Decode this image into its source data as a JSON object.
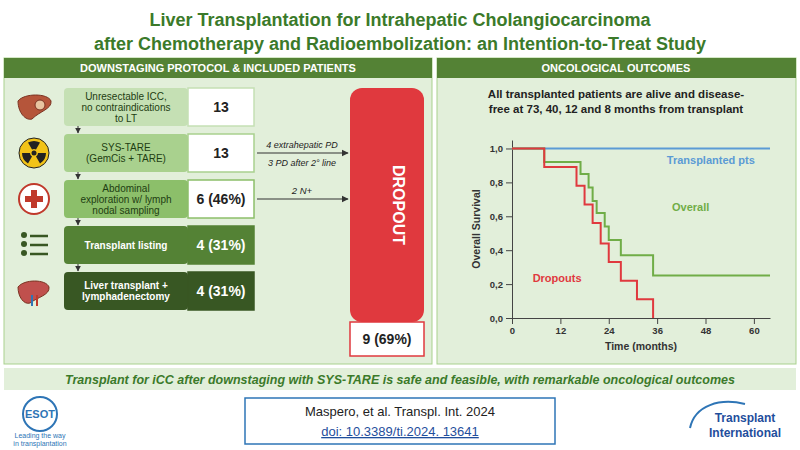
{
  "header": {
    "title": [
      "Liver Transplantation for Intrahepatic Cholangiocarcinoma",
      "after Chemotherapy and Radioembolization: an Intention-to-Treat Study"
    ]
  },
  "left_panel": {
    "heading": "DOWNSTAGING PROTOCOL & INCLUDED PATIENTS",
    "steps": [
      {
        "label": [
          "Unresectable ICC,",
          "no contraindications",
          "to LT"
        ],
        "count": "13"
      },
      {
        "label": [
          "SYS-TARE",
          "(GemCis + TARE)"
        ],
        "count": "13",
        "dropout_note": [
          "4 extrahepatic PD",
          "3 PD after 2° line"
        ]
      },
      {
        "label": [
          "Abdominal",
          "exploration w/ lymph",
          "nodal sampling"
        ],
        "count": "6 (46%)",
        "dropout_note": [
          "2 N+"
        ]
      },
      {
        "label": [
          "Transplant listing"
        ],
        "count": "4 (31%)"
      },
      {
        "label": [
          "Liver transplant +",
          "lymphadenectomy"
        ],
        "count": "4 (31%)"
      }
    ],
    "dropout": {
      "label": "DROPOUT",
      "total": "9 (69%)"
    }
  },
  "right_panel": {
    "heading": "ONCOLOGICAL OUTCOMES",
    "statement": [
      "All transplanted patients are alive and disease-",
      "free at 73, 40, 12 and 8 months from transplant"
    ]
  },
  "chart_data": {
    "type": "line",
    "line_style": "step",
    "x_label": "Time (months)",
    "y_label": "Overall Survival",
    "xlim": [
      0,
      64
    ],
    "xticks": [
      0,
      12,
      24,
      36,
      48,
      60
    ],
    "ylim": [
      0,
      1.05
    ],
    "yticks": [
      {
        "value": 0,
        "label": "0,0"
      },
      {
        "value": 0.2,
        "label": "0,2"
      },
      {
        "value": 0.4,
        "label": "0,4"
      },
      {
        "value": 0.6,
        "label": "0,6"
      },
      {
        "value": 0.8,
        "label": "0,8"
      },
      {
        "value": 1,
        "label": "1,0"
      }
    ],
    "series": [
      {
        "name": "Transplanted pts",
        "color": "#5b9bd5",
        "x": [
          0,
          64
        ],
        "values": [
          1,
          1
        ]
      },
      {
        "name": "Overall",
        "color": "#70ad47",
        "x": [
          0,
          8,
          17,
          19,
          20,
          21,
          23,
          24,
          27,
          35,
          64
        ],
        "values": [
          1,
          0.92,
          0.85,
          0.77,
          0.69,
          0.62,
          0.54,
          0.46,
          0.37,
          0.25,
          0.25
        ]
      },
      {
        "name": "Dropouts",
        "color": "#e0393e",
        "x": [
          0,
          8,
          16,
          18,
          20,
          22,
          24,
          27,
          31,
          35
        ],
        "values": [
          1,
          0.89,
          0.78,
          0.67,
          0.56,
          0.44,
          0.33,
          0.22,
          0.11,
          0
        ]
      }
    ]
  },
  "conclusion": "Transplant for iCC after downstaging with SYS-TARE is safe and feasible, with remarkable oncological outcomes",
  "footer": {
    "left_logo": [
      "ESOT",
      "Leading the way",
      "in transplantation"
    ],
    "citation": [
      "Maspero, et al. Transpl. Int. 2024",
      "doi: 10.3389/ti.2024. 13641"
    ],
    "right_logo": [
      "Transplant",
      "International"
    ]
  }
}
